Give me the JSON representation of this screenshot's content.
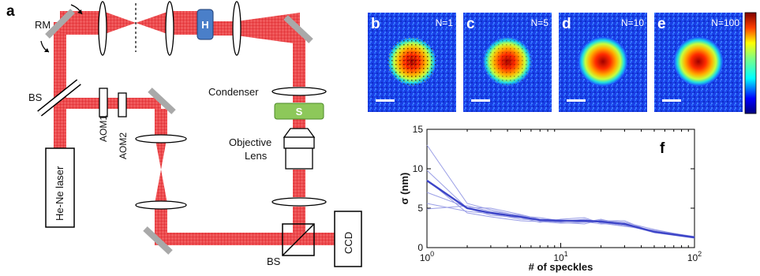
{
  "panel_a": {
    "letter": "a",
    "labels": {
      "rm": "RM",
      "bs_top": "BS",
      "aom1": "AOM1",
      "aom2": "AOM2",
      "laser": "He-Ne laser",
      "h": "H",
      "condenser": "Condenser",
      "s": "S",
      "objective_line1": "Objective",
      "objective_line2": "Lens",
      "bs_bottom": "BS",
      "ccd": "CCD"
    },
    "colors": {
      "beam": "#e8191d",
      "h_box": "#4a7fc9",
      "s_box": "#8dc85a",
      "mirror": "#a9a9a9"
    }
  },
  "speckle_panels": [
    {
      "letter": "b",
      "label": "N=1"
    },
    {
      "letter": "c",
      "label": "N=5"
    },
    {
      "letter": "d",
      "label": "N=10"
    },
    {
      "letter": "e",
      "label": "N=100"
    }
  ],
  "chart_data": {
    "type": "line",
    "panel_letter": "f",
    "xlabel": "# of speckles",
    "ylabel": "σ (nm)",
    "xscale": "log",
    "xlim": [
      1,
      100
    ],
    "ylim": [
      0,
      15
    ],
    "yticks": [
      0,
      5,
      10,
      15
    ],
    "xtick_labels": [
      {
        "base": "10",
        "exp": "0"
      },
      {
        "base": "10",
        "exp": "1"
      },
      {
        "base": "10",
        "exp": "2"
      }
    ],
    "x": [
      1,
      2,
      3,
      5,
      7,
      10,
      15,
      20,
      30,
      50,
      100
    ],
    "mean_series": {
      "values": [
        8.5,
        5.0,
        4.4,
        3.9,
        3.5,
        3.4,
        3.4,
        3.3,
        3.0,
        2.0,
        1.3
      ],
      "color": "#3d45c8"
    },
    "trial_series": [
      {
        "values": [
          13.0,
          5.6,
          4.8,
          4.0,
          3.8,
          3.4,
          3.2,
          3.6,
          2.9,
          1.9,
          1.2
        ]
      },
      {
        "values": [
          9.8,
          5.0,
          4.1,
          3.8,
          3.2,
          3.6,
          3.8,
          3.1,
          2.7,
          2.2,
          1.4
        ]
      },
      {
        "values": [
          8.6,
          4.4,
          3.9,
          3.4,
          3.3,
          3.1,
          3.2,
          3.4,
          3.4,
          1.9,
          1.3
        ]
      },
      {
        "values": [
          7.0,
          5.1,
          5.0,
          4.2,
          3.6,
          3.5,
          3.3,
          3.0,
          3.1,
          2.1,
          1.2
        ]
      },
      {
        "values": [
          5.6,
          4.6,
          4.3,
          3.6,
          3.5,
          3.3,
          3.6,
          3.2,
          2.8,
          2.0,
          1.4
        ]
      },
      {
        "values": [
          4.9,
          5.3,
          4.6,
          4.1,
          3.4,
          3.2,
          3.0,
          3.5,
          3.2,
          2.3,
          1.3
        ]
      }
    ],
    "trial_color": "#9a9ee6"
  }
}
